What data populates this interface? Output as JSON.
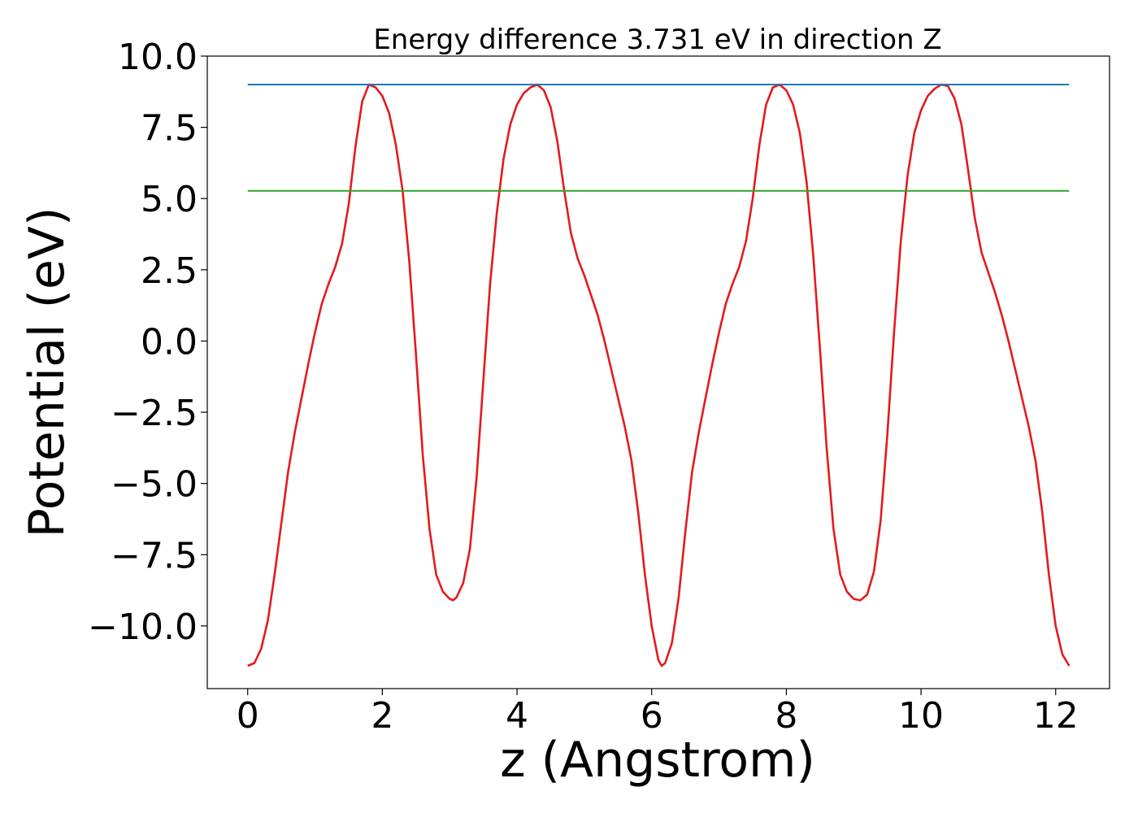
{
  "chart_data": {
    "type": "line",
    "title": "Energy difference 3.731 eV in direction Z",
    "xlabel": "z (Angstrom)",
    "ylabel": "Potential (eV)",
    "xlim": [
      -0.6,
      12.8
    ],
    "ylim": [
      -12.2,
      10.0
    ],
    "xticks": [
      0,
      2,
      4,
      6,
      8,
      10,
      12
    ],
    "xtick_labels": [
      "0",
      "2",
      "4",
      "6",
      "8",
      "10",
      "12"
    ],
    "yticks": [
      -10.0,
      -7.5,
      -5.0,
      -2.5,
      0.0,
      2.5,
      5.0,
      7.5,
      10.0
    ],
    "ytick_labels": [
      "−10.0",
      "−7.5",
      "−5.0",
      "−2.5",
      "0.0",
      "2.5",
      "5.0",
      "7.5",
      "10.0"
    ],
    "grid": false,
    "legend": false,
    "series": [
      {
        "color": "#e41a1c",
        "kind": "curve",
        "points": [
          [
            0.0,
            -11.4
          ],
          [
            0.1,
            -11.3
          ],
          [
            0.2,
            -10.8
          ],
          [
            0.3,
            -9.8
          ],
          [
            0.4,
            -8.2
          ],
          [
            0.5,
            -6.4
          ],
          [
            0.6,
            -4.6
          ],
          [
            0.7,
            -3.2
          ],
          [
            0.8,
            -2.0
          ],
          [
            0.9,
            -0.8
          ],
          [
            1.0,
            0.3
          ],
          [
            1.1,
            1.3
          ],
          [
            1.2,
            2.0
          ],
          [
            1.3,
            2.6
          ],
          [
            1.4,
            3.4
          ],
          [
            1.5,
            4.8
          ],
          [
            1.6,
            6.8
          ],
          [
            1.7,
            8.4
          ],
          [
            1.8,
            9.0
          ],
          [
            1.9,
            8.9
          ],
          [
            2.0,
            8.6
          ],
          [
            2.1,
            8.0
          ],
          [
            2.2,
            6.9
          ],
          [
            2.3,
            5.3
          ],
          [
            2.4,
            2.8
          ],
          [
            2.5,
            -0.5
          ],
          [
            2.6,
            -4.0
          ],
          [
            2.7,
            -6.6
          ],
          [
            2.8,
            -8.2
          ],
          [
            2.9,
            -8.8
          ],
          [
            3.0,
            -9.05
          ],
          [
            3.05,
            -9.1
          ],
          [
            3.1,
            -9.0
          ],
          [
            3.2,
            -8.5
          ],
          [
            3.3,
            -7.3
          ],
          [
            3.4,
            -4.8
          ],
          [
            3.5,
            -1.4
          ],
          [
            3.6,
            2.0
          ],
          [
            3.7,
            4.5
          ],
          [
            3.8,
            6.4
          ],
          [
            3.9,
            7.6
          ],
          [
            4.0,
            8.3
          ],
          [
            4.1,
            8.7
          ],
          [
            4.2,
            8.9
          ],
          [
            4.3,
            9.0
          ],
          [
            4.4,
            8.8
          ],
          [
            4.5,
            8.2
          ],
          [
            4.6,
            7.0
          ],
          [
            4.7,
            5.3
          ],
          [
            4.8,
            3.8
          ],
          [
            4.9,
            2.9
          ],
          [
            5.0,
            2.3
          ],
          [
            5.1,
            1.6
          ],
          [
            5.2,
            0.9
          ],
          [
            5.3,
            0.0
          ],
          [
            5.4,
            -1.0
          ],
          [
            5.5,
            -2.0
          ],
          [
            5.6,
            -3.0
          ],
          [
            5.7,
            -4.2
          ],
          [
            5.8,
            -6.0
          ],
          [
            5.9,
            -8.2
          ],
          [
            6.0,
            -10.0
          ],
          [
            6.1,
            -11.2
          ],
          [
            6.15,
            -11.4
          ],
          [
            6.2,
            -11.3
          ],
          [
            6.3,
            -10.6
          ],
          [
            6.4,
            -9.0
          ],
          [
            6.5,
            -6.7
          ],
          [
            6.6,
            -4.6
          ],
          [
            6.7,
            -3.2
          ],
          [
            6.8,
            -2.0
          ],
          [
            6.9,
            -0.8
          ],
          [
            7.0,
            0.3
          ],
          [
            7.1,
            1.3
          ],
          [
            7.2,
            2.0
          ],
          [
            7.3,
            2.6
          ],
          [
            7.4,
            3.5
          ],
          [
            7.5,
            5.0
          ],
          [
            7.6,
            6.9
          ],
          [
            7.7,
            8.3
          ],
          [
            7.8,
            8.9
          ],
          [
            7.9,
            9.0
          ],
          [
            8.0,
            8.8
          ],
          [
            8.1,
            8.3
          ],
          [
            8.2,
            7.3
          ],
          [
            8.3,
            5.6
          ],
          [
            8.4,
            3.0
          ],
          [
            8.5,
            -0.3
          ],
          [
            8.6,
            -3.8
          ],
          [
            8.7,
            -6.6
          ],
          [
            8.8,
            -8.2
          ],
          [
            8.9,
            -8.8
          ],
          [
            9.0,
            -9.05
          ],
          [
            9.1,
            -9.1
          ],
          [
            9.2,
            -8.9
          ],
          [
            9.3,
            -8.1
          ],
          [
            9.4,
            -6.3
          ],
          [
            9.5,
            -3.3
          ],
          [
            9.6,
            0.3
          ],
          [
            9.7,
            3.5
          ],
          [
            9.8,
            5.8
          ],
          [
            9.9,
            7.3
          ],
          [
            10.0,
            8.1
          ],
          [
            10.1,
            8.6
          ],
          [
            10.2,
            8.85
          ],
          [
            10.3,
            9.0
          ],
          [
            10.4,
            8.95
          ],
          [
            10.5,
            8.5
          ],
          [
            10.6,
            7.6
          ],
          [
            10.7,
            6.0
          ],
          [
            10.8,
            4.3
          ],
          [
            10.9,
            3.1
          ],
          [
            11.0,
            2.4
          ],
          [
            11.1,
            1.7
          ],
          [
            11.2,
            0.9
          ],
          [
            11.3,
            0.0
          ],
          [
            11.4,
            -1.0
          ],
          [
            11.5,
            -2.0
          ],
          [
            11.6,
            -3.0
          ],
          [
            11.7,
            -4.2
          ],
          [
            11.8,
            -6.0
          ],
          [
            11.9,
            -8.2
          ],
          [
            12.0,
            -10.0
          ],
          [
            12.1,
            -11.0
          ],
          [
            12.2,
            -11.4
          ]
        ]
      },
      {
        "color": "#1f78b4",
        "kind": "hline",
        "y": 9.0,
        "x": [
          0.0,
          12.2
        ]
      },
      {
        "color": "#33a02c",
        "kind": "hline",
        "y": 5.27,
        "x": [
          0.0,
          12.2
        ]
      }
    ]
  }
}
